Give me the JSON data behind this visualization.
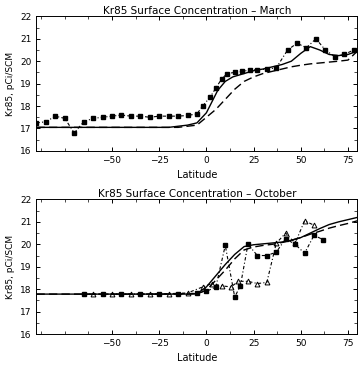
{
  "march": {
    "title": "Kr85 Surface Concentration – March",
    "solid_x": [
      -90,
      -85,
      -80,
      -75,
      -70,
      -65,
      -60,
      -55,
      -50,
      -45,
      -40,
      -35,
      -30,
      -25,
      -20,
      -15,
      -10,
      -5,
      0,
      3,
      6,
      10,
      14,
      18,
      22,
      26,
      30,
      35,
      40,
      45,
      50,
      55,
      60,
      65,
      70,
      75,
      80
    ],
    "solid_y": [
      17.05,
      17.05,
      17.05,
      17.05,
      17.05,
      17.05,
      17.05,
      17.05,
      17.05,
      17.05,
      17.05,
      17.05,
      17.05,
      17.05,
      17.05,
      17.1,
      17.15,
      17.25,
      17.7,
      18.2,
      18.7,
      19.1,
      19.3,
      19.4,
      19.5,
      19.6,
      19.65,
      19.75,
      19.85,
      20.0,
      20.35,
      20.65,
      20.5,
      20.3,
      20.25,
      20.3,
      20.45
    ],
    "dashed_x": [
      -90,
      -85,
      -80,
      -75,
      -70,
      -65,
      -60,
      -55,
      -50,
      -45,
      -40,
      -35,
      -30,
      -25,
      -20,
      -15,
      -10,
      -5,
      0,
      5,
      10,
      15,
      20,
      25,
      30,
      35,
      40,
      45,
      50,
      55,
      60,
      65,
      70,
      75,
      80
    ],
    "dashed_y": [
      17.05,
      17.05,
      17.05,
      17.05,
      17.05,
      17.05,
      17.05,
      17.05,
      17.05,
      17.05,
      17.05,
      17.05,
      17.05,
      17.05,
      17.05,
      17.05,
      17.1,
      17.15,
      17.5,
      17.85,
      18.3,
      18.75,
      19.1,
      19.3,
      19.45,
      19.55,
      19.65,
      19.75,
      19.82,
      19.88,
      19.92,
      19.96,
      20.0,
      20.05,
      20.45
    ],
    "dotdash_x": [
      -90,
      -85,
      -80,
      -75,
      -70,
      -65,
      -60,
      -55,
      -50,
      -45,
      -40,
      -35,
      -30,
      -25,
      -20,
      -15,
      -10,
      -5,
      -2,
      2,
      5,
      8,
      11,
      15,
      19,
      23,
      27,
      32,
      37,
      43,
      48,
      53,
      58,
      63,
      68,
      73,
      78
    ],
    "dotdash_y": [
      17.25,
      17.3,
      17.55,
      17.45,
      16.8,
      17.3,
      17.45,
      17.5,
      17.55,
      17.6,
      17.55,
      17.55,
      17.5,
      17.55,
      17.55,
      17.55,
      17.58,
      17.65,
      18.0,
      18.4,
      18.8,
      19.2,
      19.45,
      19.5,
      19.55,
      19.6,
      19.62,
      19.65,
      19.7,
      20.5,
      20.8,
      20.6,
      21.0,
      20.5,
      20.2,
      20.3,
      20.5
    ]
  },
  "october": {
    "title": "Kr85 Surface Concentration – October",
    "solid_x": [
      -90,
      -85,
      -80,
      -75,
      -70,
      -65,
      -60,
      -55,
      -50,
      -45,
      -40,
      -35,
      -30,
      -25,
      -20,
      -15,
      -10,
      -5,
      0,
      5,
      10,
      15,
      20,
      25,
      30,
      35,
      40,
      45,
      50,
      55,
      60,
      65,
      70,
      75,
      80
    ],
    "solid_y": [
      17.78,
      17.78,
      17.78,
      17.78,
      17.78,
      17.78,
      17.78,
      17.78,
      17.78,
      17.78,
      17.78,
      17.78,
      17.78,
      17.78,
      17.78,
      17.78,
      17.78,
      17.8,
      18.1,
      18.6,
      19.1,
      19.55,
      19.9,
      19.98,
      20.02,
      20.06,
      20.1,
      20.18,
      20.3,
      20.5,
      20.7,
      20.88,
      21.0,
      21.1,
      21.2
    ],
    "dashed_x": [
      -90,
      -85,
      -80,
      -75,
      -70,
      -65,
      -60,
      -55,
      -50,
      -45,
      -40,
      -35,
      -30,
      -25,
      -20,
      -15,
      -10,
      -5,
      0,
      5,
      10,
      15,
      20,
      25,
      30,
      35,
      40,
      45,
      50,
      55,
      60,
      65,
      70,
      75,
      80
    ],
    "dashed_y": [
      17.78,
      17.78,
      17.78,
      17.78,
      17.78,
      17.78,
      17.78,
      17.78,
      17.78,
      17.78,
      17.78,
      17.78,
      17.78,
      17.78,
      17.78,
      17.78,
      17.78,
      17.8,
      17.95,
      18.4,
      18.85,
      19.35,
      19.75,
      19.88,
      19.95,
      20.0,
      20.08,
      20.18,
      20.3,
      20.45,
      20.58,
      20.72,
      20.83,
      20.93,
      21.05
    ],
    "dotdash_sq_x": [
      -65,
      -55,
      -45,
      -35,
      -25,
      -15,
      -5,
      0,
      5,
      10,
      15,
      18,
      22,
      27,
      32,
      37,
      42,
      47,
      52,
      57,
      62
    ],
    "dotdash_sq_y": [
      17.78,
      17.78,
      17.78,
      17.78,
      17.78,
      17.8,
      17.82,
      17.9,
      18.1,
      19.95,
      17.65,
      18.15,
      20.0,
      19.5,
      19.5,
      19.65,
      20.25,
      20.0,
      19.6,
      20.4,
      20.2
    ],
    "dotdash_tri_x": [
      -60,
      -50,
      -40,
      -30,
      -20,
      -10,
      -2,
      3,
      8,
      13,
      17,
      22,
      27,
      32,
      37,
      42,
      47,
      52,
      57
    ],
    "dotdash_tri_y": [
      17.78,
      17.78,
      17.78,
      17.78,
      17.8,
      17.83,
      18.1,
      18.25,
      18.15,
      18.1,
      18.35,
      18.35,
      18.25,
      18.3,
      20.05,
      20.5,
      20.05,
      21.05,
      20.85
    ]
  },
  "ylim": [
    16,
    22
  ],
  "xlim": [
    -90,
    80
  ],
  "xticks": [
    -50,
    -25,
    0,
    25,
    50,
    75
  ],
  "yticks": [
    16,
    17,
    18,
    19,
    20,
    21,
    22
  ],
  "xlabel": "Latitude",
  "ylabel": "Kr85, pCi/SCM",
  "bg_color": "#ffffff",
  "fig_bg_color": "#ffffff"
}
